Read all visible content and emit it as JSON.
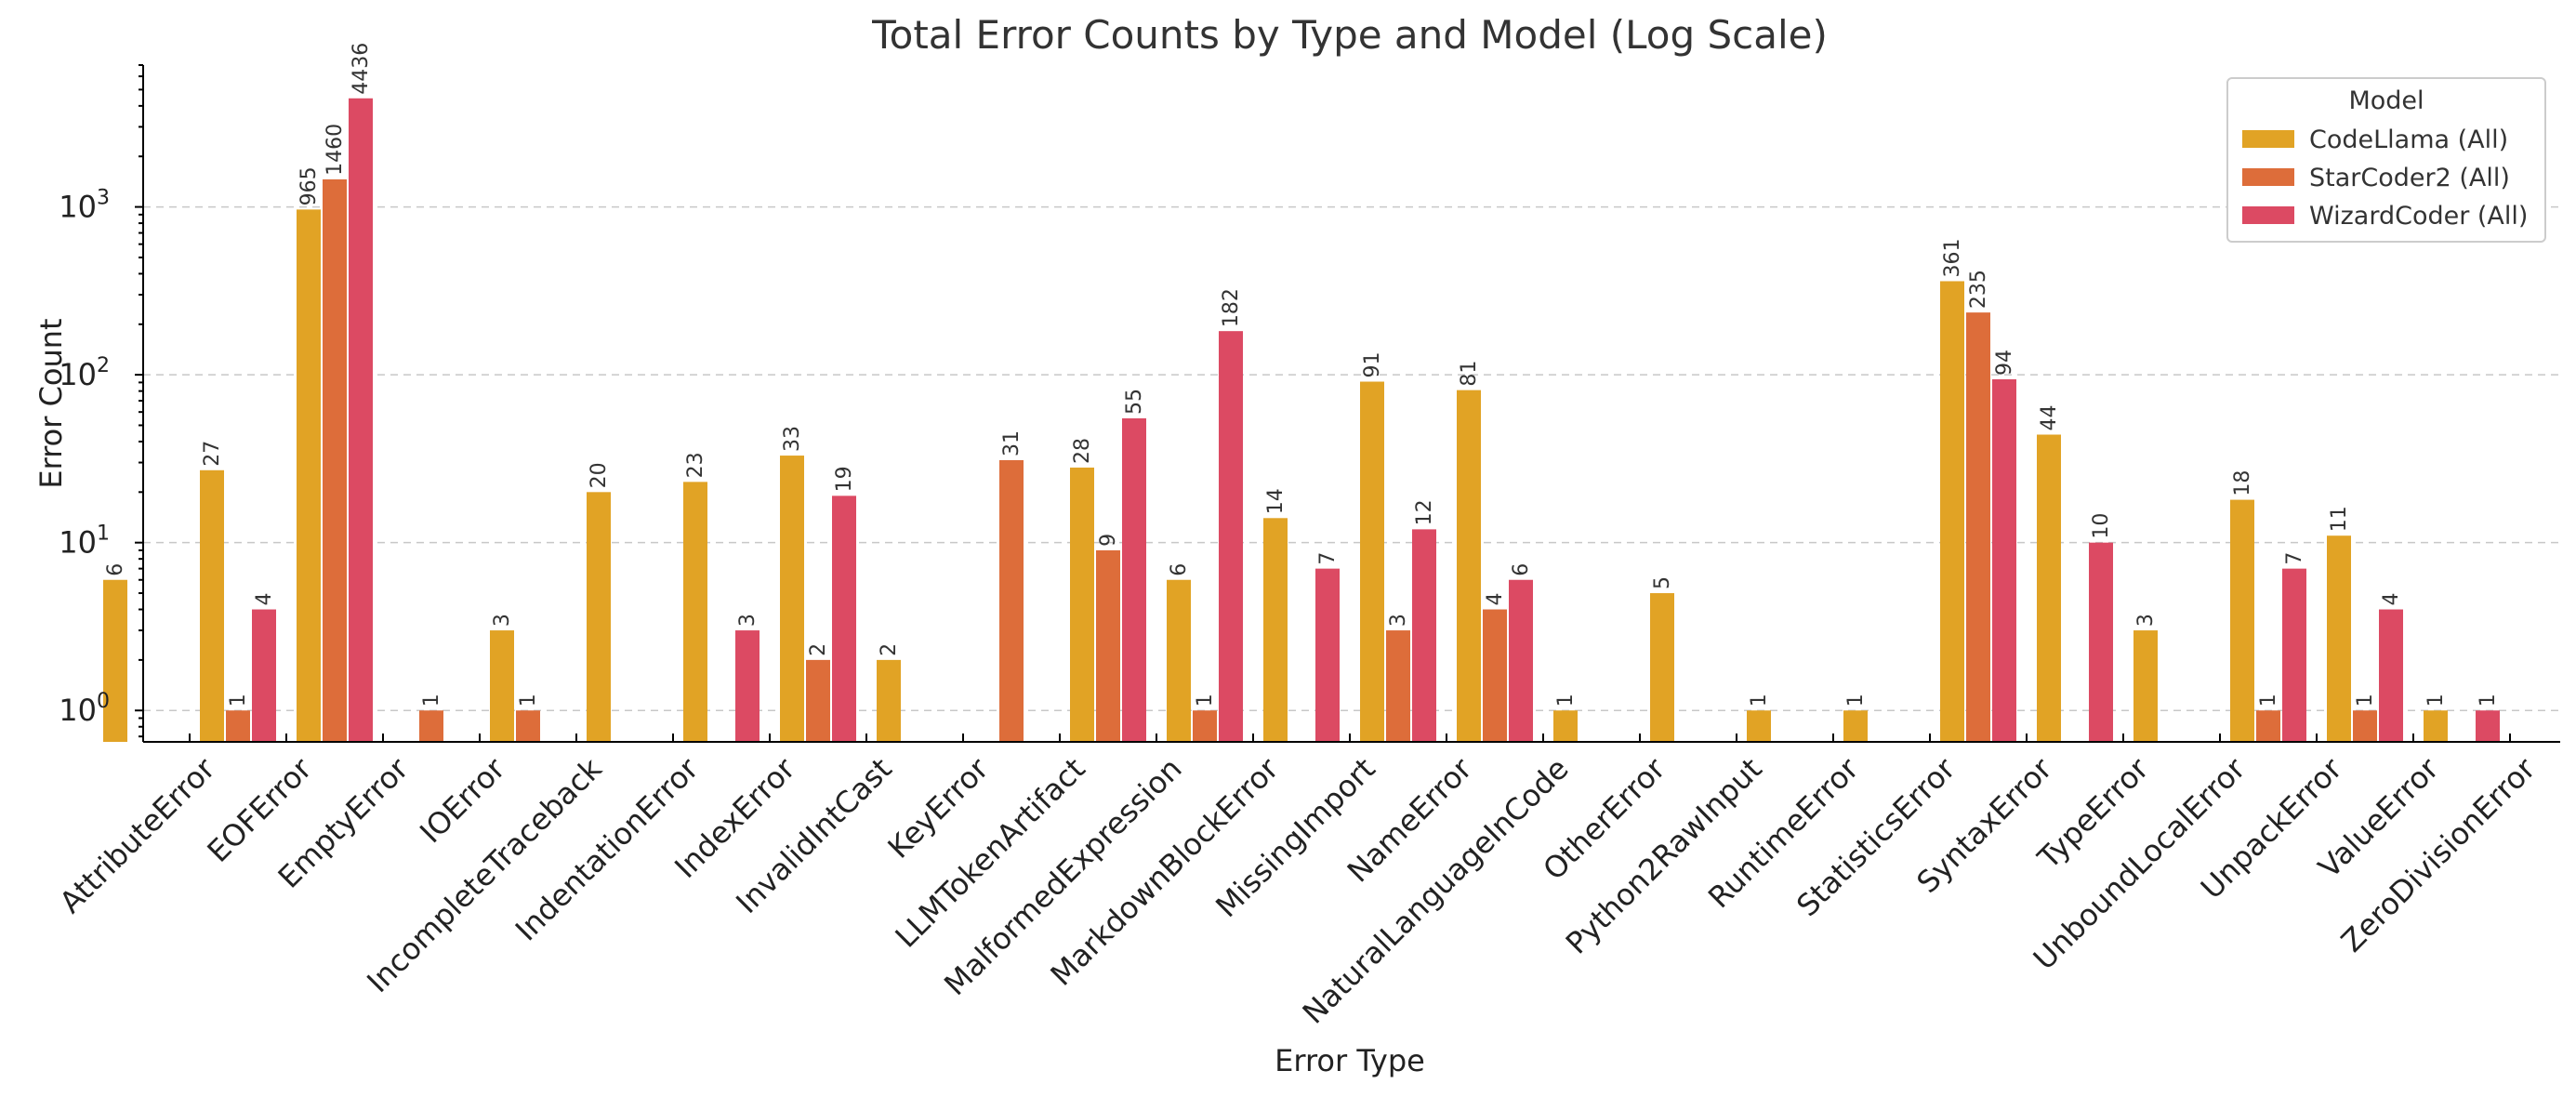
{
  "chart_data": {
    "type": "bar",
    "title": "Total Error Counts by Type and Model (Log Scale)",
    "xlabel": "Error Type",
    "ylabel": "Error Count",
    "yscale": "log",
    "ylim": [
      0.65,
      7000
    ],
    "grid": true,
    "legend_position": "top-right",
    "legend_title": "Model",
    "categories": [
      "AttributeError",
      "EOFError",
      "EmptyError",
      "IOError",
      "IncompleteTraceback",
      "IndentationError",
      "IndexError",
      "InvalidIntCast",
      "KeyError",
      "LLMTokenArtifact",
      "MalformedExpression",
      "MarkdownBlockError",
      "MissingImport",
      "NameError",
      "NaturalLanguageInCode",
      "OtherError",
      "Python2RawInput",
      "RuntimeError",
      "StatisticsError",
      "SyntaxError",
      "TypeError",
      "UnboundLocalError",
      "UnpackError",
      "ValueError",
      "ZeroDivisionError"
    ],
    "y_ticks": [
      {
        "value": 1,
        "base": "10",
        "exp": "0"
      },
      {
        "value": 10,
        "base": "10",
        "exp": "1"
      },
      {
        "value": 100,
        "base": "10",
        "exp": "2"
      },
      {
        "value": 1000,
        "base": "10",
        "exp": "3"
      }
    ],
    "series": [
      {
        "name": "CodeLlama (All)",
        "color": "#E1A325",
        "values": [
          6,
          27,
          965,
          null,
          3,
          20,
          23,
          33,
          2,
          null,
          28,
          6,
          14,
          91,
          81,
          1,
          5,
          1,
          1,
          361,
          44,
          3,
          18,
          11,
          1
        ]
      },
      {
        "name": "StarCoder2 (All)",
        "color": "#DD6D3A",
        "values": [
          null,
          1,
          1460,
          1,
          1,
          null,
          null,
          2,
          null,
          31,
          9,
          1,
          null,
          3,
          4,
          null,
          null,
          null,
          null,
          235,
          null,
          null,
          1,
          1,
          null
        ]
      },
      {
        "name": "WizardCoder (All)",
        "color": "#DC4A63",
        "values": [
          null,
          4,
          4436,
          null,
          null,
          null,
          3,
          19,
          null,
          null,
          55,
          182,
          7,
          12,
          6,
          null,
          null,
          null,
          null,
          94,
          10,
          null,
          7,
          4,
          1
        ]
      }
    ]
  }
}
